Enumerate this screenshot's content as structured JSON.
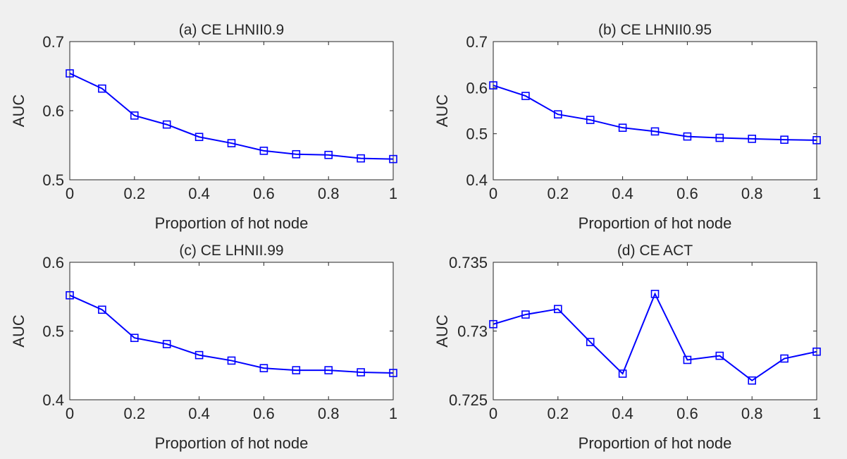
{
  "chart_data": [
    {
      "type": "line",
      "title": "(a) CE LHNII0.9",
      "xlabel": "Proportion of hot node",
      "ylabel": "AUC",
      "xlim": [
        0,
        1
      ],
      "ylim": [
        0.5,
        0.7
      ],
      "xticks": [
        "0",
        "0.2",
        "0.4",
        "0.6",
        "0.8",
        "1"
      ],
      "yticks": [
        "0.5",
        "0.6",
        "0.7"
      ],
      "series": [
        {
          "color": "#0000ff",
          "marker": "square",
          "x": [
            0,
            0.1,
            0.2,
            0.3,
            0.4,
            0.5,
            0.6,
            0.7,
            0.8,
            0.9,
            1.0
          ],
          "y": [
            0.654,
            0.632,
            0.593,
            0.58,
            0.562,
            0.553,
            0.542,
            0.537,
            0.536,
            0.531,
            0.53
          ]
        }
      ]
    },
    {
      "type": "line",
      "title": "(b) CE LHNII0.95",
      "xlabel": "Proportion of hot node",
      "ylabel": "AUC",
      "xlim": [
        0,
        1
      ],
      "ylim": [
        0.4,
        0.7
      ],
      "xticks": [
        "0",
        "0.2",
        "0.4",
        "0.6",
        "0.8",
        "1"
      ],
      "yticks": [
        "0.4",
        "0.5",
        "0.6",
        "0.7"
      ],
      "series": [
        {
          "color": "#0000ff",
          "marker": "square",
          "x": [
            0,
            0.1,
            0.2,
            0.3,
            0.4,
            0.5,
            0.6,
            0.7,
            0.8,
            0.9,
            1.0
          ],
          "y": [
            0.605,
            0.582,
            0.542,
            0.53,
            0.513,
            0.505,
            0.494,
            0.491,
            0.489,
            0.487,
            0.486
          ]
        }
      ]
    },
    {
      "type": "line",
      "title": "(c) CE LHNII.99",
      "xlabel": "Proportion of hot node",
      "ylabel": "AUC",
      "xlim": [
        0,
        1
      ],
      "ylim": [
        0.4,
        0.6
      ],
      "xticks": [
        "0",
        "0.2",
        "0.4",
        "0.6",
        "0.8",
        "1"
      ],
      "yticks": [
        "0.4",
        "0.5",
        "0.6"
      ],
      "series": [
        {
          "color": "#0000ff",
          "marker": "square",
          "x": [
            0,
            0.1,
            0.2,
            0.3,
            0.4,
            0.5,
            0.6,
            0.7,
            0.8,
            0.9,
            1.0
          ],
          "y": [
            0.552,
            0.531,
            0.49,
            0.481,
            0.465,
            0.457,
            0.446,
            0.443,
            0.443,
            0.44,
            0.439
          ]
        }
      ]
    },
    {
      "type": "line",
      "title": "(d) CE ACT",
      "xlabel": "Proportion of hot node",
      "ylabel": "AUC",
      "xlim": [
        0,
        1
      ],
      "ylim": [
        0.725,
        0.735
      ],
      "xticks": [
        "0",
        "0.2",
        "0.4",
        "0.6",
        "0.8",
        "1"
      ],
      "yticks": [
        "0.725",
        "0.73",
        "0.735"
      ],
      "series": [
        {
          "color": "#0000ff",
          "marker": "square",
          "x": [
            0,
            0.1,
            0.2,
            0.3,
            0.4,
            0.5,
            0.6,
            0.7,
            0.8,
            0.9,
            1.0
          ],
          "y": [
            0.7305,
            0.7312,
            0.7316,
            0.7292,
            0.7269,
            0.7327,
            0.7279,
            0.7282,
            0.7264,
            0.728,
            0.7285
          ]
        }
      ]
    }
  ]
}
